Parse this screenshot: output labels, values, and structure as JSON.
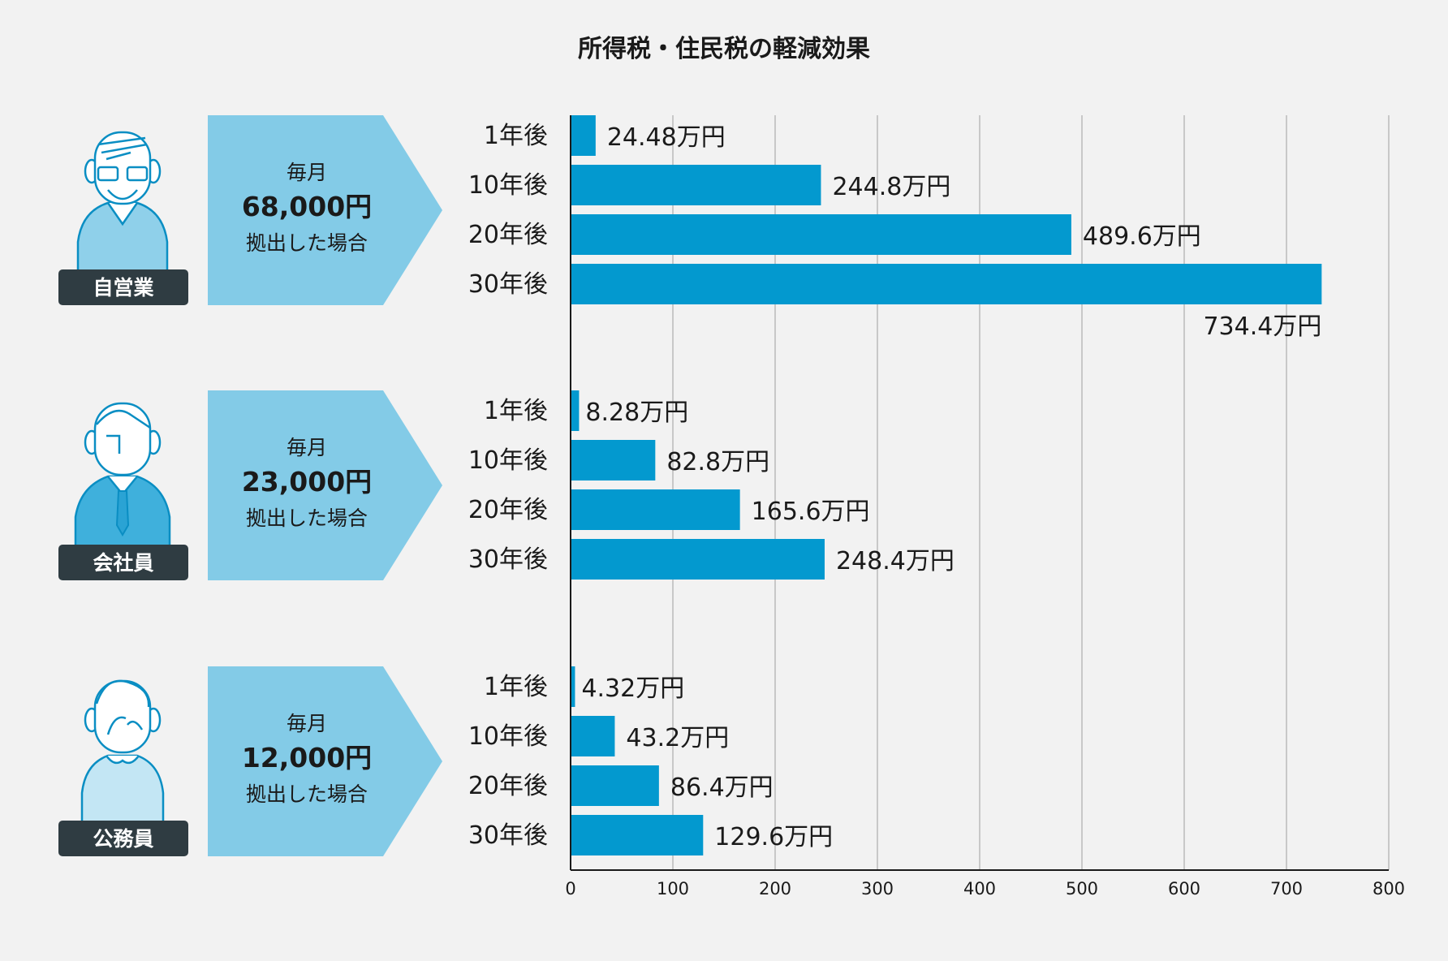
{
  "chart_data": {
    "type": "bar",
    "orientation": "horizontal",
    "title": "所得税・住民税の軽減効果",
    "xlim": [
      0,
      800
    ],
    "xticks": [
      0,
      100,
      200,
      300,
      400,
      500,
      600,
      700,
      800
    ],
    "grid": true,
    "categories": [
      "1年後",
      "10年後",
      "20年後",
      "30年後"
    ],
    "groups": [
      {
        "role": "自営業",
        "banner_top": "毎月",
        "amount": "68,000円",
        "banner_bottom": "拠出した場合",
        "values": [
          24.48,
          244.8,
          489.6,
          734.4
        ],
        "labels": [
          "24.48万円",
          "244.8万円",
          "489.6万円",
          "734.4万円"
        ]
      },
      {
        "role": "会社員",
        "banner_top": "毎月",
        "amount": "23,000円",
        "banner_bottom": "拠出した場合",
        "values": [
          8.28,
          82.8,
          165.6,
          248.4
        ],
        "labels": [
          "8.28万円",
          "82.8万円",
          "165.6万円",
          "248.4万円"
        ]
      },
      {
        "role": "公務員",
        "banner_top": "毎月",
        "amount": "12,000円",
        "banner_bottom": "拠出した場合",
        "values": [
          4.32,
          43.2,
          86.4,
          129.6
        ],
        "labels": [
          "4.32万円",
          "43.2万円",
          "86.4万円",
          "129.6万円"
        ]
      }
    ]
  },
  "colors": {
    "bar": "#0399cf",
    "banner": "#83cbe7",
    "badge": "#2f3c42",
    "grid": "#c8c8c8",
    "axis": "#1a1a1a",
    "avatar_1": "#8fd0ea",
    "avatar_2": "#3fb0dc",
    "avatar_3": "#c3e6f4"
  },
  "icons": [
    "self-employed-avatar-icon",
    "office-worker-avatar-icon",
    "civil-servant-avatar-icon"
  ]
}
